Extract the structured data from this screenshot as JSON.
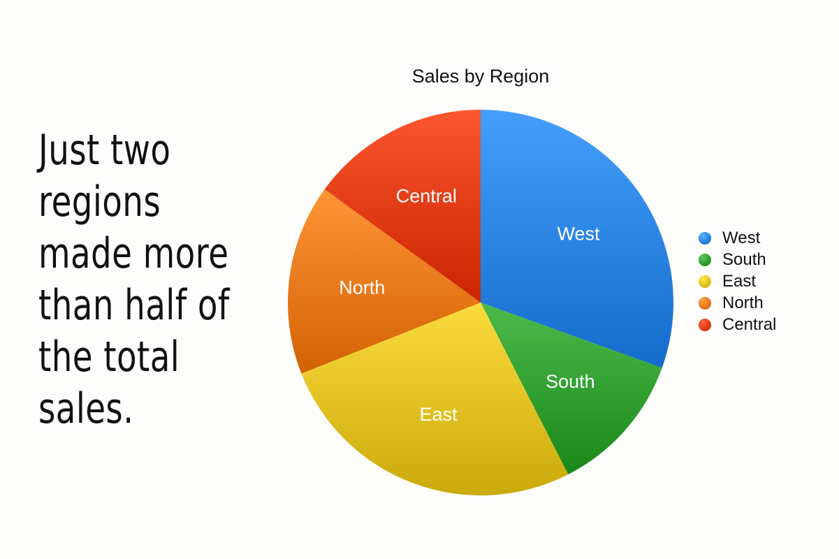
{
  "headline": {
    "lines": [
      "Just two",
      "regions",
      "made more",
      "than half of",
      "the total",
      "sales."
    ]
  },
  "chart_data": {
    "type": "pie",
    "title": "Sales by Region",
    "legend_position": "right",
    "slices": [
      {
        "label": "West",
        "value": 30.5,
        "color": "#2a82e0"
      },
      {
        "label": "South",
        "value": 12.0,
        "color": "#2f9e2f"
      },
      {
        "label": "East",
        "value": 26.5,
        "color": "#e0c020"
      },
      {
        "label": "North",
        "value": 16.0,
        "color": "#e8781a"
      },
      {
        "label": "Central",
        "value": 15.0,
        "color": "#e03a12"
      }
    ]
  }
}
